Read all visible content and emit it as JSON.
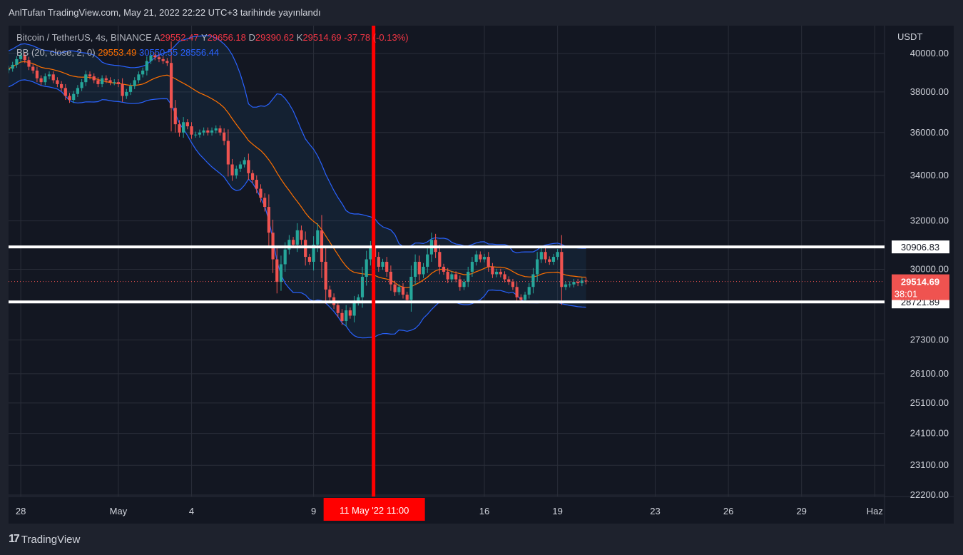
{
  "header": {
    "text": "AnlTufan TradingView.com, May 21, 2022 22:22 UTC+3 tarihinde yayınlandı"
  },
  "legend": {
    "symbol": "Bitcoin / TetherUS, 4s, BINANCE",
    "open_label": "A",
    "open": "29552.47",
    "high_label": "Y",
    "high": "29656.18",
    "low_label": "D",
    "low": "29390.62",
    "close_label": "K",
    "close": "29514.69",
    "change": "-37.78 (-0.13%)",
    "bb_label": "BB (20, close, 2, 0)",
    "bb_basis": "29553.49",
    "bb_upper": "30550.55",
    "bb_lower": "28556.44"
  },
  "footer": {
    "logo": "17",
    "brand": "TradingView"
  },
  "colors": {
    "background": "#131722",
    "frame": "#1e222d",
    "grid": "#2a2e39",
    "up": "#26a69a",
    "down": "#ef5350",
    "basis": "#ff7000",
    "band": "#2962ff",
    "marker": "#ff0000",
    "level": "#ffffff"
  },
  "chart_data": {
    "type": "candlestick",
    "y_axis_unit": "USDT",
    "y_scale": "log",
    "y_ticks": [
      40000,
      38000,
      36000,
      34000,
      32000,
      30000,
      27300,
      26100,
      25100,
      24100,
      23100,
      22200
    ],
    "y_tick_labels": [
      "40000.00",
      "38000.00",
      "36000.00",
      "34000.00",
      "32000.00",
      "30000.00",
      "27300.00",
      "26100.00",
      "25100.00",
      "24100.00",
      "23100.00",
      "22200.00"
    ],
    "x_ticks": [
      {
        "label": "28",
        "day": -3
      },
      {
        "label": "May",
        "day": 1
      },
      {
        "label": "4",
        "day": 4
      },
      {
        "label": "9",
        "day": 9
      },
      {
        "label": "16",
        "day": 16
      },
      {
        "label": "19",
        "day": 19
      },
      {
        "label": "23",
        "day": 23
      },
      {
        "label": "26",
        "day": 26
      },
      {
        "label": "29",
        "day": 29
      },
      {
        "label": "Haz",
        "day": 32
      }
    ],
    "x_range_days": [
      -3.5,
      32.4
    ],
    "horizontal_levels": [
      {
        "value": 30906.83,
        "label": "30906.83"
      },
      {
        "value": 28721.89,
        "label": "28721.89"
      }
    ],
    "last_price": {
      "value": 29514.69,
      "label": "29514.69",
      "countdown": "38:01"
    },
    "vertical_marker": {
      "day": 11.458,
      "label": "11 May '22   11:00"
    },
    "candles_per_day": 6,
    "first_candle_day": -3.5,
    "closes": [
      39200,
      39400,
      39700,
      39900,
      39650,
      39300,
      39100,
      38700,
      38500,
      38800,
      38900,
      38600,
      38400,
      38200,
      37800,
      37600,
      37900,
      38200,
      38500,
      38900,
      38800,
      38600,
      38400,
      38700,
      38600,
      38500,
      38500,
      38400,
      37800,
      38000,
      38300,
      38600,
      38900,
      39100,
      39600,
      39900,
      39800,
      39700,
      39600,
      39500,
      37200,
      36400,
      36000,
      36500,
      36300,
      35900,
      35900,
      36000,
      36100,
      36000,
      36100,
      36200,
      36000,
      35600,
      34500,
      34000,
      34300,
      34500,
      34700,
      34100,
      33800,
      33400,
      33000,
      32600,
      31500,
      30400,
      29500,
      30200,
      30800,
      31200,
      31000,
      31600,
      31200,
      30500,
      30300,
      31000,
      31600,
      30300,
      29200,
      28900,
      28600,
      28300,
      28000,
      28400,
      28200,
      28700,
      28900,
      29700,
      30400,
      30900,
      30500,
      30100,
      30300,
      29900,
      29400,
      29100,
      29300,
      29000,
      28800,
      29700,
      30300,
      29800,
      30100,
      30600,
      31200,
      30700,
      30100,
      29900,
      29600,
      29800,
      29600,
      29300,
      29500,
      29900,
      30300,
      30600,
      30400,
      30500,
      30100,
      29800,
      29900,
      29800,
      29600,
      29500,
      29300,
      28900,
      28800,
      29000,
      29300,
      29800,
      30400,
      30700,
      30400,
      30300,
      30500,
      30700,
      29300,
      29400,
      29400,
      29500,
      29450,
      29550,
      29520
    ]
  }
}
